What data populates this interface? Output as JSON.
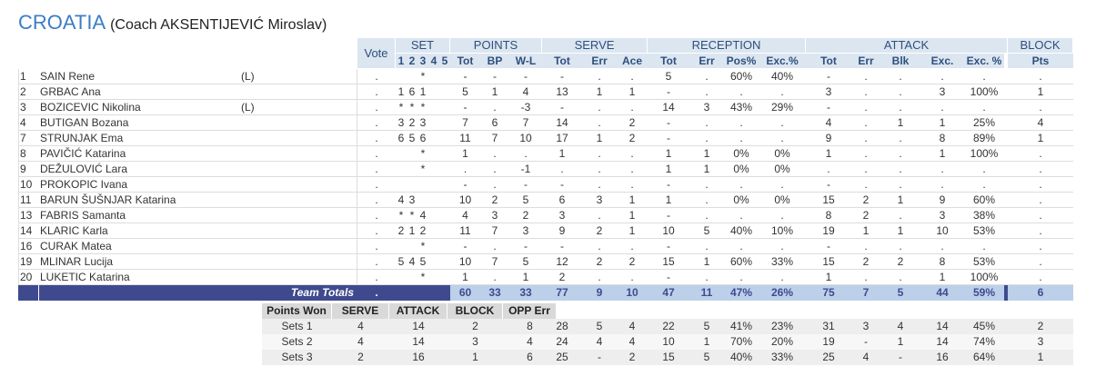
{
  "header": {
    "team": "CROATIA",
    "coach": "(Coach AKSENTIJEVIĆ Miroslav)"
  },
  "columns": {
    "groups": [
      "Vote",
      "SET",
      "POINTS",
      "SERVE",
      "RECEPTION",
      "ATTACK",
      "BLOCK"
    ],
    "sub": [
      "1",
      "2",
      "3",
      "4",
      "5",
      "Tot",
      "BP",
      "W-L",
      "Tot",
      "Err",
      "Ace",
      "Tot",
      "Err",
      "Pos%",
      "Exc.%",
      "Tot",
      "Err",
      "Blk",
      "Exc.",
      "Exc. %",
      "Pts"
    ]
  },
  "players": [
    {
      "number": "1",
      "name": "SAIN Rene",
      "role": "(L)",
      "cells": [
        ".",
        null,
        null,
        "*",
        null,
        null,
        "-",
        "-",
        "-",
        "-",
        ".",
        ".",
        "5",
        ".",
        "60%",
        "40%",
        "-",
        ".",
        ".",
        ".",
        ".",
        "."
      ]
    },
    {
      "number": "2",
      "name": "GRBAC Ana",
      "role": null,
      "cells": [
        ".",
        "1",
        "6",
        "1",
        null,
        null,
        "5",
        "1",
        "4",
        "13",
        "1",
        "1",
        "-",
        ".",
        ".",
        ".",
        "3",
        ".",
        ".",
        "3",
        "100%",
        "1"
      ]
    },
    {
      "number": "3",
      "name": "BOZICEVIC Nikolina",
      "role": "(L)",
      "cells": [
        ".",
        "*",
        "*",
        "*",
        null,
        null,
        "-",
        ".",
        "-3",
        "-",
        ".",
        ".",
        "14",
        "3",
        "43%",
        "29%",
        "-",
        ".",
        ".",
        ".",
        ".",
        "."
      ]
    },
    {
      "number": "4",
      "name": "BUTIGAN Bozana",
      "role": null,
      "cells": [
        ".",
        "3",
        "2",
        "3",
        null,
        null,
        "7",
        "6",
        "7",
        "14",
        ".",
        "2",
        "-",
        ".",
        ".",
        ".",
        "4",
        ".",
        "1",
        "1",
        "25%",
        "4"
      ]
    },
    {
      "number": "7",
      "name": "STRUNJAK Ema",
      "role": null,
      "cells": [
        ".",
        "6",
        "5",
        "6",
        null,
        null,
        "11",
        "7",
        "10",
        "17",
        "1",
        "2",
        "-",
        ".",
        ".",
        ".",
        "9",
        ".",
        ".",
        "8",
        "89%",
        "1"
      ]
    },
    {
      "number": "8",
      "name": "PAVIČIĆ Katarina",
      "role": null,
      "cells": [
        ".",
        null,
        null,
        "*",
        null,
        null,
        "1",
        ".",
        ".",
        "1",
        ".",
        ".",
        "1",
        "1",
        "0%",
        "0%",
        "1",
        ".",
        ".",
        "1",
        "100%",
        "."
      ]
    },
    {
      "number": "9",
      "name": "DEŽULOVIĆ Lara",
      "role": null,
      "cells": [
        ".",
        null,
        null,
        "*",
        null,
        null,
        ".",
        ".",
        "-1",
        ".",
        ".",
        ".",
        "1",
        "1",
        "0%",
        "0%",
        ".",
        ".",
        ".",
        ".",
        ".",
        "."
      ]
    },
    {
      "number": "10",
      "name": "PROKOPIC Ivana",
      "role": null,
      "cells": [
        ".",
        null,
        null,
        null,
        null,
        null,
        "-",
        ".",
        "-",
        "-",
        ".",
        ".",
        "-",
        ".",
        ".",
        ".",
        "-",
        ".",
        ".",
        ".",
        ".",
        "."
      ]
    },
    {
      "number": "11",
      "name": "BARUN ŠUŠNJAR Katarina",
      "role": null,
      "cells": [
        ".",
        "4",
        "3",
        null,
        null,
        null,
        "10",
        "2",
        "5",
        "6",
        "3",
        "1",
        "1",
        ".",
        "0%",
        "0%",
        "15",
        "2",
        "1",
        "9",
        "60%",
        "."
      ]
    },
    {
      "number": "13",
      "name": "FABRIS Samanta",
      "role": null,
      "cells": [
        ".",
        "*",
        "*",
        "4",
        null,
        null,
        "4",
        "3",
        "2",
        "3",
        ".",
        "1",
        "-",
        ".",
        ".",
        ".",
        "8",
        "2",
        ".",
        "3",
        "38%",
        "."
      ]
    },
    {
      "number": "14",
      "name": "KLARIC Karla",
      "role": null,
      "cells": [
        ".",
        "2",
        "1",
        "2",
        null,
        null,
        "11",
        "7",
        "3",
        "9",
        "2",
        "1",
        "10",
        "5",
        "40%",
        "10%",
        "19",
        "1",
        "1",
        "10",
        "53%",
        "."
      ]
    },
    {
      "number": "16",
      "name": "CURAK Matea",
      "role": null,
      "cells": [
        ".",
        null,
        null,
        "*",
        null,
        null,
        "-",
        ".",
        "-",
        "-",
        ".",
        ".",
        "-",
        ".",
        ".",
        ".",
        "-",
        ".",
        ".",
        ".",
        ".",
        "."
      ]
    },
    {
      "number": "19",
      "name": "MLINAR Lucija",
      "role": null,
      "cells": [
        ".",
        "5",
        "4",
        "5",
        null,
        null,
        "10",
        "7",
        "5",
        "12",
        "2",
        "2",
        "15",
        "1",
        "60%",
        "33%",
        "15",
        "2",
        "2",
        "8",
        "53%",
        "."
      ]
    },
    {
      "number": "20",
      "name": "LUKETIC Katarina",
      "role": null,
      "cells": [
        ".",
        null,
        null,
        "*",
        null,
        null,
        "1",
        ".",
        "1",
        "2",
        ".",
        ".",
        "-",
        ".",
        ".",
        ".",
        "1",
        ".",
        ".",
        "1",
        "100%",
        "."
      ]
    }
  ],
  "totals": {
    "label": "Team Totals",
    "cells": [
      ".",
      null,
      null,
      null,
      null,
      null,
      "60",
      "33",
      "33",
      "77",
      "9",
      "10",
      "47",
      "11",
      "47%",
      "26%",
      "75",
      "7",
      "5",
      "44",
      "59%",
      "6"
    ]
  },
  "points_won": {
    "headers": [
      "Points Won",
      "SERVE",
      "ATTACK",
      "BLOCK",
      "OPP Err"
    ],
    "rows": [
      {
        "label": "Sets 1",
        "cells": [
          "4",
          "14",
          "2",
          "8",
          "28",
          "5",
          "4",
          "22",
          "5",
          "41%",
          "23%",
          "31",
          "3",
          "4",
          "14",
          "45%",
          "2"
        ]
      },
      {
        "label": "Sets 2",
        "cells": [
          "4",
          "14",
          "3",
          "4",
          "24",
          "4",
          "4",
          "10",
          "1",
          "70%",
          "20%",
          "19",
          "-",
          "1",
          "14",
          "74%",
          "3"
        ]
      },
      {
        "label": "Sets 3",
        "cells": [
          "2",
          "16",
          "1",
          "6",
          "25",
          "-",
          "2",
          "15",
          "5",
          "40%",
          "33%",
          "25",
          "4",
          "-",
          "16",
          "64%",
          "1"
        ]
      }
    ]
  }
}
